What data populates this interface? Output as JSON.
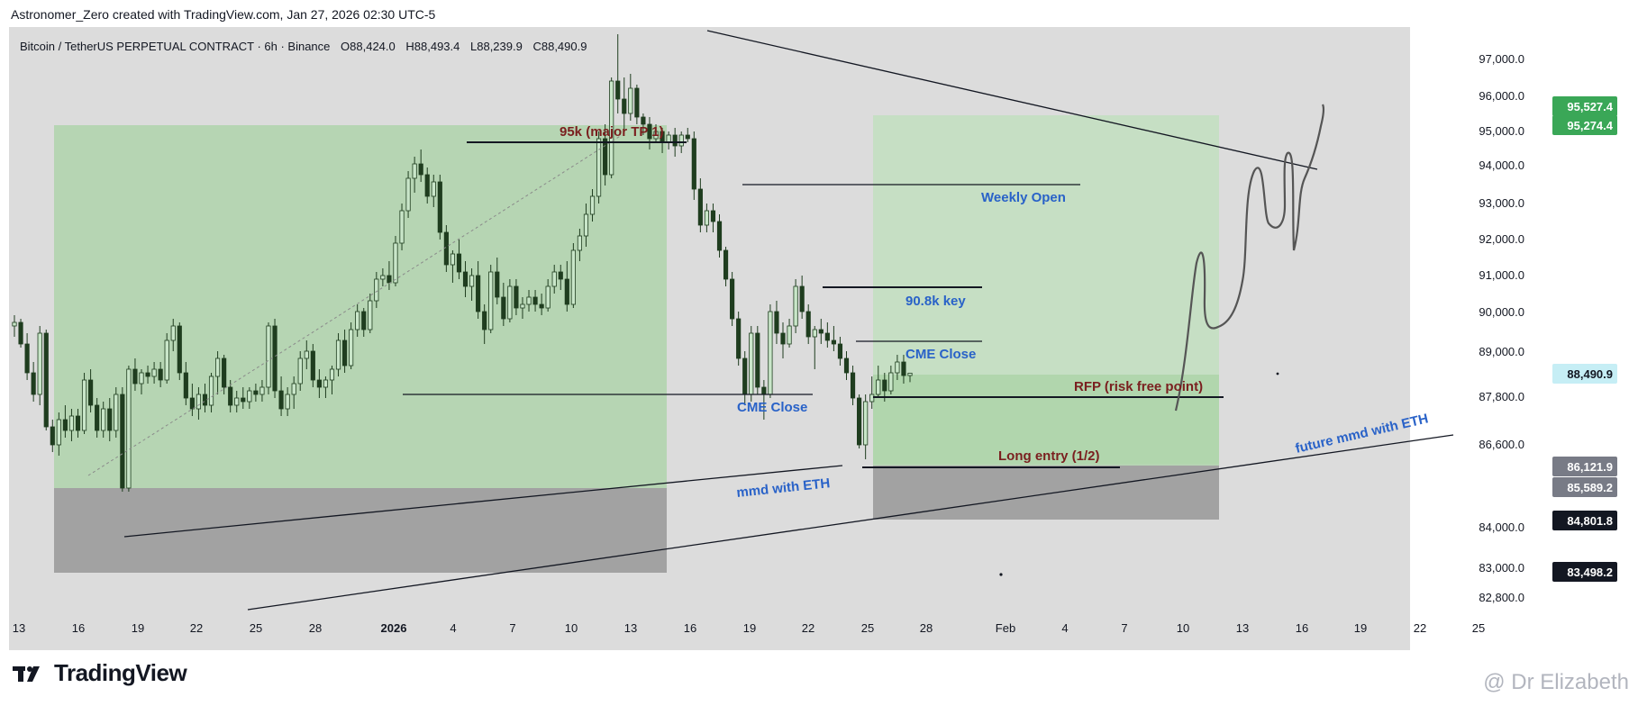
{
  "header": {
    "text": "Astronomer_Zero created with TradingView.com, Jan 27, 2026 02:30 UTC-5"
  },
  "logo": {
    "text": "TradingView"
  },
  "watermark": {
    "text": "@ Dr Elizabeth"
  },
  "colors": {
    "chart_bg": "#dcdcdc",
    "up_candle": "#c9e6c9",
    "down_candle": "#1f3d1f",
    "green_zone": "#a9d3a5",
    "gray_zone": "#a2a2a2",
    "blue_label": "#2962c8",
    "maroon_label": "#7a1f1f",
    "price_green": "#3aa757",
    "price_cyan": "#c6eef5"
  },
  "chart_data": {
    "type": "candlestick",
    "title": "Bitcoin / TetherUS PERPETUAL CONTRACT · 6h · Binance",
    "ohlc_text": {
      "o_label": "O",
      "o": "88,424.0",
      "h_label": "H",
      "h": "88,493.4",
      "l_label": "L",
      "l": "88,239.9",
      "c_label": "C",
      "c": "88,490.9"
    },
    "y_ticks": [
      "97,000.0",
      "96,000.0",
      "95,000.0",
      "94,000.0",
      "93,000.0",
      "92,000.0",
      "91,000.0",
      "90,000.0",
      "89,000.0",
      "87,800.0",
      "86,600.0",
      "84,000.0",
      "83,000.0",
      "82,800.0"
    ],
    "x_ticks": [
      "13",
      "16",
      "19",
      "22",
      "25",
      "28",
      "2026",
      "4",
      "7",
      "10",
      "13",
      "16",
      "19",
      "22",
      "25",
      "28",
      "Feb",
      "4",
      "7",
      "10",
      "13",
      "16",
      "19",
      "22",
      "25"
    ],
    "price_labels": [
      {
        "value": "95,527.4",
        "style": "green"
      },
      {
        "value": "95,274.4",
        "style": "green"
      },
      {
        "value": "88,490.9",
        "style": "cyan"
      },
      {
        "value": "86,121.9",
        "style": "gray"
      },
      {
        "value": "85,589.2",
        "style": "gray"
      },
      {
        "value": "84,801.8",
        "style": "black"
      },
      {
        "value": "83,498.2",
        "style": "black"
      }
    ],
    "annotations": [
      {
        "text": "95k (major TP 1)",
        "color": "maroon",
        "price": 95000
      },
      {
        "text": "Weekly Open",
        "color": "blue",
        "price": 93600
      },
      {
        "text": "90.8k key",
        "color": "blue",
        "price": 90800
      },
      {
        "text": "CME Close",
        "color": "blue",
        "price": 89400
      },
      {
        "text": "CME Close",
        "color": "blue",
        "price": 87900
      },
      {
        "text": "RFP (risk free point)",
        "color": "maroon",
        "price": 87900
      },
      {
        "text": "Long entry (1/2)",
        "color": "maroon",
        "price": 86200
      },
      {
        "text": "mmd with ETH",
        "color": "blue",
        "price": 85300
      },
      {
        "text": "future mmd with ETH",
        "color": "blue",
        "price": 86800
      }
    ],
    "key_levels": [
      95000,
      93600,
      90800,
      89400,
      87900,
      86200
    ],
    "candles": [
      [
        89800,
        90100,
        89500,
        89900
      ],
      [
        89900,
        90000,
        89200,
        89300
      ],
      [
        89300,
        89600,
        88300,
        88500
      ],
      [
        88500,
        88800,
        87700,
        87900
      ],
      [
        87900,
        89800,
        87600,
        89600
      ],
      [
        89600,
        89700,
        86900,
        87000
      ],
      [
        87000,
        87200,
        86300,
        86500
      ],
      [
        86500,
        87400,
        86200,
        87200
      ],
      [
        87200,
        87600,
        86700,
        86900
      ],
      [
        86900,
        87500,
        86600,
        87300
      ],
      [
        87300,
        87500,
        86700,
        86900
      ],
      [
        86900,
        88500,
        86800,
        88300
      ],
      [
        88300,
        88600,
        87400,
        87600
      ],
      [
        87600,
        87800,
        86700,
        86900
      ],
      [
        86900,
        87700,
        86700,
        87500
      ],
      [
        87500,
        87800,
        86600,
        86900
      ],
      [
        86900,
        88100,
        86700,
        87900
      ],
      [
        87900,
        88100,
        85200,
        85300
      ],
      [
        85300,
        88700,
        85200,
        88600
      ],
      [
        88600,
        88900,
        88000,
        88200
      ],
      [
        88200,
        88600,
        87900,
        88500
      ],
      [
        88500,
        88700,
        88200,
        88400
      ],
      [
        88400,
        88800,
        88200,
        88600
      ],
      [
        88600,
        88800,
        88100,
        88300
      ],
      [
        88300,
        89600,
        88200,
        89400
      ],
      [
        89400,
        90000,
        89100,
        89800
      ],
      [
        89800,
        89900,
        88300,
        88500
      ],
      [
        88500,
        88800,
        87600,
        87800
      ],
      [
        87800,
        88200,
        87300,
        87500
      ],
      [
        87500,
        88100,
        87200,
        87900
      ],
      [
        87900,
        88200,
        87400,
        87600
      ],
      [
        87600,
        88500,
        87400,
        88400
      ],
      [
        88400,
        89100,
        87900,
        88900
      ],
      [
        88900,
        89000,
        87900,
        88100
      ],
      [
        88100,
        88300,
        87400,
        87600
      ],
      [
        87600,
        88000,
        87400,
        87800
      ],
      [
        87800,
        88100,
        87500,
        87700
      ],
      [
        87700,
        88100,
        87500,
        88000
      ],
      [
        88000,
        88200,
        87700,
        87900
      ],
      [
        87900,
        88300,
        87700,
        88100
      ],
      [
        88100,
        89900,
        87900,
        89800
      ],
      [
        89800,
        90000,
        87800,
        88000
      ],
      [
        88000,
        88400,
        87300,
        87500
      ],
      [
        87500,
        88100,
        87300,
        87900
      ],
      [
        87900,
        88400,
        87500,
        88200
      ],
      [
        88200,
        89100,
        88000,
        88900
      ],
      [
        88900,
        89400,
        88600,
        89100
      ],
      [
        89100,
        89300,
        88100,
        88300
      ],
      [
        88300,
        88600,
        87800,
        88100
      ],
      [
        88100,
        88400,
        87800,
        88300
      ],
      [
        88300,
        88700,
        87900,
        88600
      ],
      [
        88600,
        89600,
        88400,
        89400
      ],
      [
        89400,
        89700,
        88500,
        88700
      ],
      [
        88700,
        89900,
        88600,
        89700
      ],
      [
        89700,
        90400,
        89500,
        90200
      ],
      [
        90200,
        90300,
        89500,
        89700
      ],
      [
        89700,
        90700,
        89600,
        90500
      ],
      [
        90500,
        91300,
        90300,
        91100
      ],
      [
        91100,
        91400,
        90900,
        91200
      ],
      [
        91200,
        91600,
        90800,
        91000
      ],
      [
        91000,
        92300,
        90900,
        92100
      ],
      [
        92100,
        93200,
        91900,
        93000
      ],
      [
        93000,
        94100,
        92800,
        93900
      ],
      [
        93900,
        94500,
        93500,
        94300
      ],
      [
        94300,
        94700,
        93800,
        94000
      ],
      [
        94000,
        94200,
        93200,
        93400
      ],
      [
        93400,
        94000,
        93100,
        93800
      ],
      [
        93800,
        94000,
        92200,
        92400
      ],
      [
        92400,
        92600,
        91300,
        91500
      ],
      [
        91500,
        91900,
        91000,
        91800
      ],
      [
        91800,
        92200,
        91100,
        91300
      ],
      [
        91300,
        91600,
        90600,
        90900
      ],
      [
        90900,
        91400,
        90500,
        91200
      ],
      [
        91200,
        91600,
        90000,
        90200
      ],
      [
        90200,
        90400,
        89300,
        89700
      ],
      [
        89700,
        91500,
        89600,
        91300
      ],
      [
        91300,
        91700,
        90400,
        90600
      ],
      [
        90600,
        91000,
        89800,
        90000
      ],
      [
        90000,
        91100,
        89900,
        90900
      ],
      [
        90900,
        91100,
        90100,
        90300
      ],
      [
        90300,
        90600,
        90000,
        90400
      ],
      [
        90400,
        90800,
        90200,
        90600
      ],
      [
        90600,
        90800,
        90200,
        90400
      ],
      [
        90400,
        90700,
        90100,
        90300
      ],
      [
        90300,
        91100,
        90200,
        90900
      ],
      [
        90900,
        91500,
        90700,
        91300
      ],
      [
        91300,
        91500,
        90800,
        91100
      ],
      [
        91100,
        91600,
        90200,
        90400
      ],
      [
        90400,
        92100,
        90300,
        91900
      ],
      [
        91900,
        92500,
        91600,
        92300
      ],
      [
        92300,
        93200,
        92000,
        92900
      ],
      [
        92900,
        93600,
        92700,
        93400
      ],
      [
        93400,
        95200,
        93200,
        95000
      ],
      [
        95000,
        95400,
        93700,
        94000
      ],
      [
        94000,
        96700,
        93900,
        96600
      ],
      [
        96600,
        97900,
        95700,
        96100
      ],
      [
        96100,
        96700,
        95200,
        95700
      ],
      [
        95700,
        96800,
        95500,
        96400
      ],
      [
        96400,
        96500,
        95400,
        95600
      ],
      [
        95600,
        95700,
        95100,
        95400
      ],
      [
        95400,
        95600,
        94700,
        95000
      ],
      [
        95000,
        95400,
        94900,
        95200
      ],
      [
        95200,
        95300,
        94600,
        94900
      ],
      [
        94900,
        95200,
        94700,
        95100
      ],
      [
        95100,
        95300,
        94500,
        94800
      ],
      [
        94800,
        95200,
        94600,
        95100
      ],
      [
        95100,
        95300,
        94900,
        95000
      ],
      [
        95000,
        95200,
        93300,
        93600
      ],
      [
        93600,
        93900,
        92400,
        92600
      ],
      [
        92600,
        93200,
        92400,
        93000
      ],
      [
        93000,
        93200,
        92400,
        92700
      ],
      [
        92700,
        92900,
        91700,
        91900
      ],
      [
        91900,
        92000,
        90900,
        91100
      ],
      [
        91100,
        91300,
        89800,
        90000
      ],
      [
        90000,
        90200,
        88700,
        88900
      ],
      [
        88900,
        89100,
        87600,
        87900
      ],
      [
        87900,
        89800,
        87700,
        89600
      ],
      [
        89600,
        89800,
        87900,
        88100
      ],
      [
        88100,
        88300,
        87200,
        87900
      ],
      [
        87900,
        90400,
        87800,
        90200
      ],
      [
        90200,
        90500,
        89300,
        89600
      ],
      [
        89600,
        89900,
        88900,
        89300
      ],
      [
        89300,
        90000,
        89200,
        89800
      ],
      [
        89800,
        91100,
        89600,
        90900
      ],
      [
        90900,
        91200,
        90000,
        90200
      ],
      [
        90200,
        90400,
        89300,
        89500
      ],
      [
        89500,
        89800,
        88600,
        89700
      ],
      [
        89700,
        90000,
        89300,
        89600
      ],
      [
        89600,
        89900,
        89200,
        89400
      ],
      [
        89400,
        89800,
        89100,
        89300
      ],
      [
        89300,
        89500,
        88700,
        88900
      ],
      [
        88900,
        89100,
        88300,
        88500
      ],
      [
        88500,
        88700,
        87600,
        87800
      ],
      [
        87800,
        87900,
        86400,
        86500
      ],
      [
        86500,
        87900,
        86100,
        87700
      ],
      [
        87700,
        88400,
        87500,
        87900
      ],
      [
        87900,
        88700,
        87800,
        88300
      ],
      [
        88300,
        88500,
        87700,
        88000
      ],
      [
        88000,
        88700,
        87900,
        88500
      ],
      [
        88500,
        89000,
        88300,
        88800
      ],
      [
        88800,
        89000,
        88200,
        88424
      ],
      [
        88424,
        88493.4,
        88239.9,
        88490.9
      ]
    ]
  }
}
